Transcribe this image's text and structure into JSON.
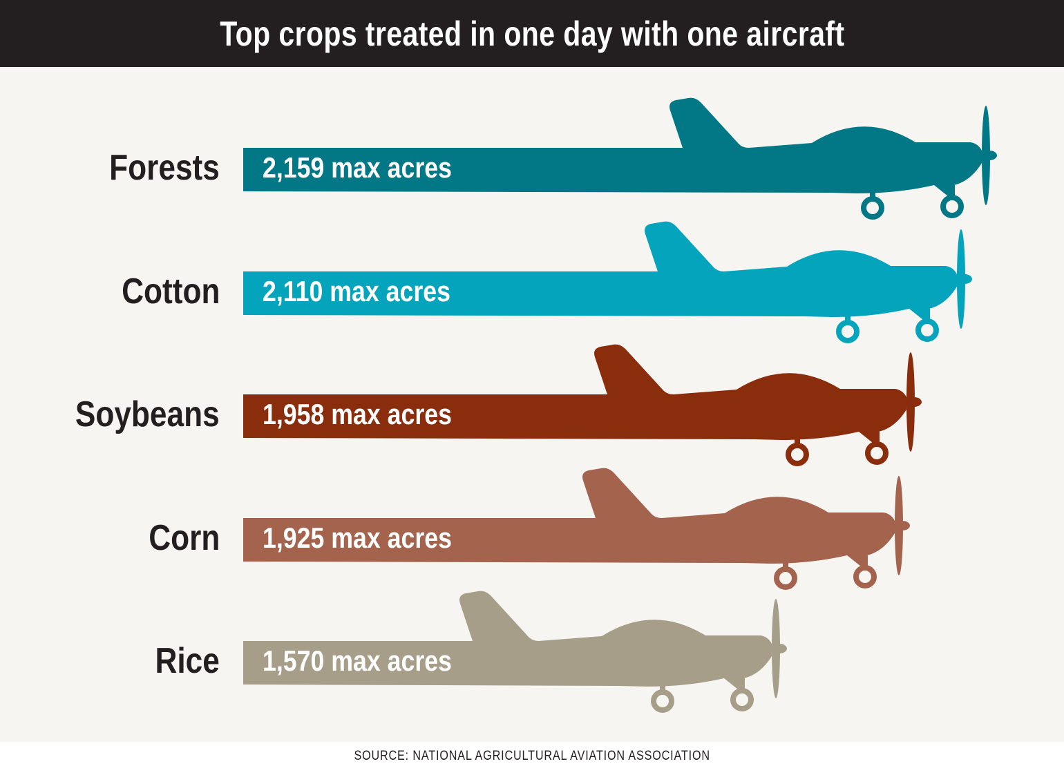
{
  "title": "Top crops treated in one day with one aircraft",
  "source": "SOURCE: NATIONAL AGRICULTURAL AVIATION ASSOCIATION",
  "rows": [
    {
      "label": "Forests",
      "value_text": "2,159 max acres",
      "color": "#027886"
    },
    {
      "label": "Cotton",
      "value_text": "2,110 max acres",
      "color": "#03a4bc"
    },
    {
      "label": "Soybeans",
      "value_text": "1,958 max acres",
      "color": "#8a2d0c"
    },
    {
      "label": "Corn",
      "value_text": "1,925 max acres",
      "color": "#a3634c"
    },
    {
      "label": "Rice",
      "value_text": "1,570 max acres",
      "color": "#a79e89"
    }
  ],
  "chart_data": {
    "type": "bar",
    "orientation": "horizontal",
    "title": "Top crops treated in one day with one aircraft",
    "categories": [
      "Forests",
      "Cotton",
      "Soybeans",
      "Corn",
      "Rice"
    ],
    "values": [
      2159,
      2110,
      1958,
      1925,
      1570
    ],
    "unit": "max acres",
    "xlabel": "",
    "ylabel": "",
    "grid": false,
    "legend": null,
    "annotations": [
      "SOURCE: NATIONAL AGRICULTURAL AVIATION ASSOCIATION"
    ],
    "colors": [
      "#027886",
      "#03a4bc",
      "#8a2d0c",
      "#a3634c",
      "#a79e89"
    ]
  }
}
